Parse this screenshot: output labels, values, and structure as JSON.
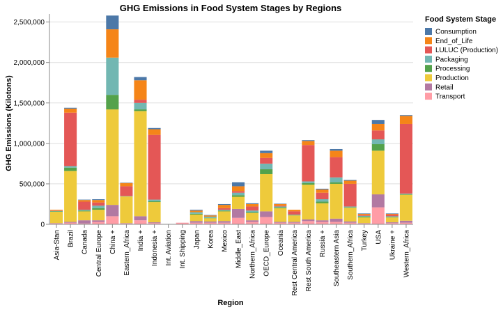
{
  "chart_data": {
    "type": "bar",
    "stacked": true,
    "title": "GHG Emissions in Food System Stages by Regions",
    "xlabel": "Region",
    "ylabel": "GHG Emissions (Kilotons)",
    "ylim": [
      0,
      2600000
    ],
    "yticks": [
      0,
      500000,
      1000000,
      1500000,
      2000000,
      2500000
    ],
    "ytick_labels": [
      "0",
      "500,000",
      "1,000,000",
      "1,500,000",
      "2,000,000",
      "2,500,000"
    ],
    "grid": true,
    "legend_title": "Food System Stage",
    "legend_position": "right",
    "categories": [
      "Asia-Stan",
      "Brazil",
      "Canada",
      "Central Europe",
      "China +",
      "Eastern_Africa",
      "India +",
      "Indonesia +",
      "Int. Aviation",
      "Int. Shipping",
      "Japan",
      "Korea",
      "Mexico",
      "Middle_East",
      "Northern_Africa",
      "OECD_Europe",
      "Oceania",
      "Rest Central America",
      "Rest South America",
      "Russia +",
      "Southeastern Asia",
      "Southern_Africa",
      "Turkey",
      "USA",
      "Ukraine +",
      "Western_Africa"
    ],
    "series": [
      {
        "name": "Transport",
        "color": "#ff9da6",
        "values": [
          10000,
          20000,
          10000,
          30000,
          100000,
          10000,
          50000,
          15000,
          0,
          20000,
          20000,
          20000,
          20000,
          80000,
          30000,
          90000,
          20000,
          20000,
          40000,
          30000,
          30000,
          20000,
          10000,
          210000,
          15000,
          20000
        ]
      },
      {
        "name": "Retail",
        "color": "#b279a2",
        "values": [
          5000,
          10000,
          40000,
          20000,
          140000,
          5000,
          50000,
          10000,
          0,
          0,
          20000,
          15000,
          20000,
          110000,
          20000,
          70000,
          10000,
          10000,
          20000,
          20000,
          40000,
          15000,
          5000,
          160000,
          10000,
          25000
        ]
      },
      {
        "name": "Production",
        "color": "#eeca3b",
        "values": [
          140000,
          630000,
          110000,
          130000,
          1180000,
          330000,
          1300000,
          250000,
          0,
          0,
          80000,
          40000,
          120000,
          150000,
          90000,
          460000,
          170000,
          80000,
          430000,
          210000,
          430000,
          170000,
          70000,
          540000,
          60000,
          320000
        ]
      },
      {
        "name": "Processing",
        "color": "#54a24b",
        "values": [
          5000,
          40000,
          10000,
          20000,
          180000,
          0,
          20000,
          10000,
          0,
          0,
          10000,
          5000,
          10000,
          20000,
          10000,
          60000,
          10000,
          5000,
          20000,
          20000,
          20000,
          5000,
          10000,
          80000,
          5000,
          5000
        ]
      },
      {
        "name": "Packaging",
        "color": "#72b7b2",
        "values": [
          5000,
          20000,
          10000,
          30000,
          460000,
          5000,
          80000,
          20000,
          0,
          0,
          20000,
          15000,
          10000,
          30000,
          20000,
          70000,
          10000,
          5000,
          20000,
          30000,
          60000,
          10000,
          10000,
          60000,
          10000,
          10000
        ]
      },
      {
        "name": "LULUC (Production)",
        "color": "#e45756",
        "values": [
          5000,
          660000,
          100000,
          40000,
          0,
          120000,
          40000,
          800000,
          0,
          0,
          0,
          0,
          20000,
          20000,
          50000,
          70000,
          10000,
          40000,
          450000,
          80000,
          250000,
          280000,
          10000,
          110000,
          20000,
          860000
        ]
      },
      {
        "name": "End_of_Life",
        "color": "#f58518",
        "values": [
          10000,
          50000,
          20000,
          30000,
          350000,
          40000,
          240000,
          70000,
          0,
          0,
          20000,
          15000,
          40000,
          60000,
          30000,
          60000,
          20000,
          20000,
          50000,
          40000,
          80000,
          40000,
          15000,
          80000,
          10000,
          100000
        ]
      },
      {
        "name": "Consumption",
        "color": "#4c78a8",
        "values": [
          0,
          10000,
          5000,
          10000,
          170000,
          5000,
          40000,
          15000,
          0,
          0,
          10000,
          5000,
          10000,
          50000,
          10000,
          30000,
          5000,
          0,
          10000,
          10000,
          20000,
          10000,
          5000,
          50000,
          5000,
          10000
        ]
      }
    ],
    "legend_order": [
      "Consumption",
      "End_of_Life",
      "LULUC (Production)",
      "Packaging",
      "Processing",
      "Production",
      "Retail",
      "Transport"
    ]
  }
}
